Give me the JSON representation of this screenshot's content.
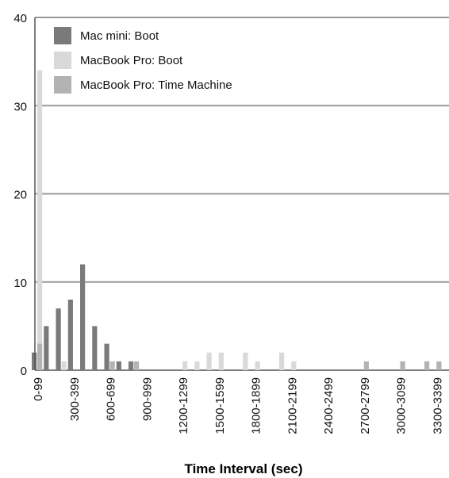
{
  "chart_data": {
    "type": "bar",
    "xlabel": "Time Interval (sec)",
    "ylabel": "",
    "ylim": [
      0,
      40
    ],
    "yticks": [
      "0",
      "10",
      "20",
      "30",
      "40"
    ],
    "grid": true,
    "legend_position": "top-left",
    "categories": [
      "0-99",
      "100-199",
      "200-299",
      "300-399",
      "400-499",
      "500-599",
      "600-699",
      "700-799",
      "800-899",
      "900-999",
      "1000-1099",
      "1100-1199",
      "1200-1299",
      "1300-1399",
      "1400-1499",
      "1500-1599",
      "1600-1699",
      "1700-1799",
      "1800-1899",
      "1900-1999",
      "2000-2099",
      "2100-2199",
      "2200-2299",
      "2300-2399",
      "2400-2499",
      "2500-2599",
      "2600-2699",
      "2700-2799",
      "2800-2899",
      "2900-2999",
      "3000-3099",
      "3100-3199",
      "3200-3299",
      "3300-3399"
    ],
    "tick_labels": [
      "0-99",
      "",
      "",
      "300-399",
      "",
      "",
      "600-699",
      "",
      "",
      "900-999",
      "",
      "",
      "1200-1299",
      "",
      "",
      "1500-1599",
      "",
      "",
      "1800-1899",
      "",
      "",
      "2100-2199",
      "",
      "",
      "2400-2499",
      "",
      "",
      "2700-2799",
      "",
      "",
      "3000-3099",
      "",
      "",
      "3300-3399"
    ],
    "series": [
      {
        "name": "Mac mini: Boot",
        "color": "#7a7a7a",
        "values": [
          2,
          5,
          7,
          8,
          12,
          5,
          3,
          1,
          1,
          0,
          0,
          0,
          0,
          0,
          0,
          0,
          0,
          0,
          0,
          0,
          0,
          0,
          0,
          0,
          0,
          0,
          0,
          0,
          0,
          0,
          0,
          0,
          0,
          0
        ]
      },
      {
        "name": "MacBook Pro: Boot",
        "color": "#d9d9d9",
        "values": [
          34,
          0,
          1,
          0,
          0,
          0,
          1,
          0,
          0,
          0,
          0,
          0,
          1,
          1,
          2,
          2,
          0,
          2,
          1,
          0,
          2,
          1,
          0,
          0,
          0,
          0,
          0,
          0,
          0,
          0,
          0,
          0,
          0,
          1
        ]
      },
      {
        "name": "MacBook Pro: Time Machine",
        "color": "#b3b3b3",
        "values": [
          3,
          0,
          0,
          0,
          0,
          0,
          1,
          0,
          1,
          0,
          0,
          0,
          0,
          0,
          0,
          0,
          0,
          0,
          0,
          0,
          0,
          0,
          0,
          0,
          0,
          0,
          0,
          1,
          0,
          0,
          1,
          0,
          1,
          1
        ]
      }
    ]
  }
}
